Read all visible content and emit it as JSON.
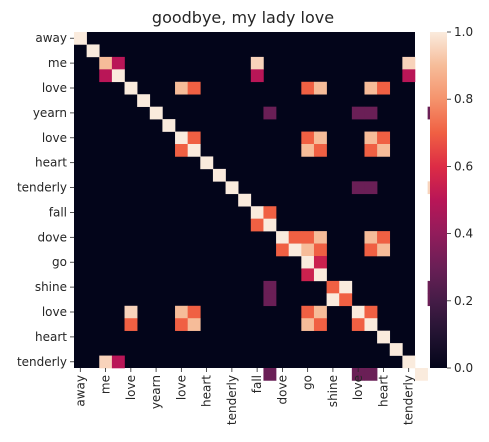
{
  "chart_data": {
    "type": "heatmap",
    "title": "goodbye, my lady love",
    "xlabel": "",
    "ylabel": "",
    "x_tick_labels": [
      "away",
      "me",
      "love",
      "yearn",
      "love",
      "heart",
      "tenderly",
      "fall",
      "dove",
      "go",
      "shine",
      "love",
      "heart",
      "tenderly"
    ],
    "y_tick_labels": [
      "away",
      "me",
      "love",
      "yearn",
      "love",
      "heart",
      "tenderly",
      "fall",
      "dove",
      "go",
      "shine",
      "love",
      "heart",
      "tenderly"
    ],
    "colorbar": {
      "min": 0.0,
      "max": 1.0,
      "tick_values": [
        0.0,
        0.2,
        0.4,
        0.6,
        0.8,
        1.0
      ],
      "tick_labels": [
        "0.0",
        "0.2",
        "0.4",
        "0.6",
        "0.8",
        "1.0"
      ]
    },
    "tokens": [
      "away",
      "?",
      "me",
      "?",
      "love",
      "?",
      "yearn",
      "?",
      "love",
      "?",
      "heart",
      "?",
      "tenderly",
      "?",
      "fall",
      "?",
      "dove",
      "?",
      "go",
      "?",
      "shine",
      "?",
      "love",
      "?",
      "heart",
      "?",
      "tenderly"
    ],
    "cells": [
      [
        0,
        0,
        1.0
      ],
      [
        1,
        1,
        1.0
      ],
      [
        2,
        2,
        0.9
      ],
      [
        2,
        3,
        0.5
      ],
      [
        2,
        14,
        0.95
      ],
      [
        2,
        26,
        0.95
      ],
      [
        3,
        2,
        0.5
      ],
      [
        3,
        3,
        1.0
      ],
      [
        3,
        14,
        0.5
      ],
      [
        3,
        26,
        0.5
      ],
      [
        4,
        4,
        1.0
      ],
      [
        4,
        8,
        0.9
      ],
      [
        4,
        9,
        0.7
      ],
      [
        4,
        18,
        0.7
      ],
      [
        4,
        19,
        0.9
      ],
      [
        4,
        23,
        0.9
      ],
      [
        4,
        24,
        0.7
      ],
      [
        5,
        5,
        1.0
      ],
      [
        6,
        6,
        1.0
      ],
      [
        6,
        15,
        0.3
      ],
      [
        6,
        22,
        0.3
      ],
      [
        6,
        23,
        0.3
      ],
      [
        6,
        28,
        0.3
      ],
      [
        7,
        7,
        1.0
      ],
      [
        8,
        8,
        1.0
      ],
      [
        8,
        9,
        0.7
      ],
      [
        8,
        18,
        0.7
      ],
      [
        8,
        19,
        0.9
      ],
      [
        8,
        23,
        0.9
      ],
      [
        8,
        24,
        0.7
      ],
      [
        9,
        8,
        0.7
      ],
      [
        9,
        9,
        1.0
      ],
      [
        9,
        18,
        0.9
      ],
      [
        9,
        19,
        0.7
      ],
      [
        9,
        23,
        0.7
      ],
      [
        9,
        24,
        0.9
      ],
      [
        10,
        10,
        1.0
      ],
      [
        11,
        11,
        1.0
      ],
      [
        12,
        12,
        1.0
      ],
      [
        12,
        22,
        0.3
      ],
      [
        12,
        23,
        0.3
      ],
      [
        12,
        28,
        0.95
      ],
      [
        13,
        13,
        1.0
      ],
      [
        14,
        14,
        1.0
      ],
      [
        14,
        15,
        0.7
      ],
      [
        15,
        14,
        0.7
      ],
      [
        15,
        15,
        1.0
      ],
      [
        16,
        16,
        1.0
      ],
      [
        16,
        17,
        0.7
      ],
      [
        16,
        18,
        0.7
      ],
      [
        16,
        19,
        0.9
      ],
      [
        16,
        23,
        0.9
      ],
      [
        16,
        24,
        0.7
      ],
      [
        17,
        16,
        0.7
      ],
      [
        17,
        17,
        1.0
      ],
      [
        17,
        18,
        0.9
      ],
      [
        17,
        19,
        0.7
      ],
      [
        17,
        23,
        0.7
      ],
      [
        17,
        24,
        0.9
      ],
      [
        18,
        18,
        1.0
      ],
      [
        18,
        19,
        0.55
      ],
      [
        19,
        18,
        0.55
      ],
      [
        19,
        19,
        1.0
      ],
      [
        20,
        20,
        0.7
      ],
      [
        20,
        21,
        1.0
      ],
      [
        20,
        15,
        0.3
      ],
      [
        20,
        28,
        0.3
      ],
      [
        21,
        20,
        1.0
      ],
      [
        21,
        21,
        0.7
      ],
      [
        21,
        15,
        0.3
      ],
      [
        21,
        28,
        0.3
      ],
      [
        22,
        4,
        0.95
      ],
      [
        22,
        8,
        0.9
      ],
      [
        22,
        9,
        0.7
      ],
      [
        22,
        18,
        0.7
      ],
      [
        22,
        19,
        0.9
      ],
      [
        22,
        22,
        1.0
      ],
      [
        22,
        23,
        0.7
      ],
      [
        23,
        4,
        0.7
      ],
      [
        23,
        8,
        0.7
      ],
      [
        23,
        9,
        0.9
      ],
      [
        23,
        18,
        0.9
      ],
      [
        23,
        19,
        0.7
      ],
      [
        23,
        22,
        0.7
      ],
      [
        23,
        23,
        1.0
      ],
      [
        24,
        24,
        1.0
      ],
      [
        25,
        25,
        1.0
      ],
      [
        26,
        2,
        0.95
      ],
      [
        26,
        3,
        0.5
      ],
      [
        26,
        26,
        1.0
      ],
      [
        27,
        15,
        0.3
      ],
      [
        27,
        22,
        0.3
      ],
      [
        27,
        23,
        0.3
      ],
      [
        27,
        27,
        1.0
      ]
    ]
  }
}
